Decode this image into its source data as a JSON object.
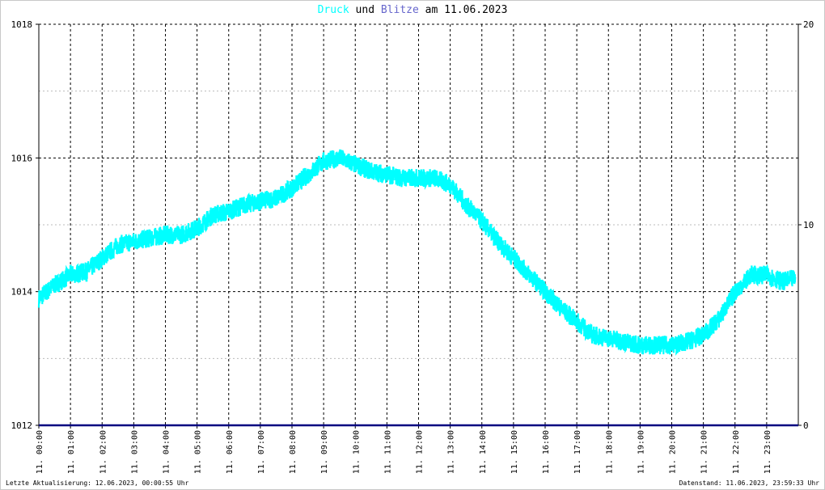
{
  "title": {
    "part1": "Druck",
    "part2": " und ",
    "part3": "Blitze",
    "part4": " am 11.06.2023",
    "color1": "#00ffff",
    "color3": "#6666cc"
  },
  "footer": {
    "left": "Letzte Aktualisierung: 12.06.2023, 00:00:55 Uhr",
    "right": "Datenstand: 11.06.2023, 23:59:33 Uhr"
  },
  "chart_data": {
    "type": "line",
    "title": "Druck und Blitze am 11.06.2023",
    "x_tick_labels": [
      "11. 00:00",
      "11. 01:00",
      "11. 02:00",
      "11. 03:00",
      "11. 04:00",
      "11. 05:00",
      "11. 06:00",
      "11. 07:00",
      "11. 08:00",
      "11. 09:00",
      "11. 10:00",
      "11. 11:00",
      "11. 12:00",
      "11. 13:00",
      "11. 14:00",
      "11. 15:00",
      "11. 16:00",
      "11. 17:00",
      "11. 18:00",
      "11. 19:00",
      "11. 20:00",
      "11. 21:00",
      "11. 22:00",
      "11. 23:00"
    ],
    "xlim_hours": [
      0,
      24
    ],
    "y_left": {
      "ylim": [
        1012,
        1018
      ],
      "ticks": [
        "1012",
        "1014",
        "1016",
        "1018"
      ]
    },
    "y_right": {
      "ylim": [
        0,
        20
      ],
      "ticks": [
        "0",
        "10",
        "20"
      ]
    },
    "grid": true,
    "series": [
      {
        "name": "Druck",
        "axis": "left",
        "color": "#00ffff",
        "x_hours": [
          0,
          0.5,
          1,
          1.5,
          2,
          2.5,
          3,
          3.5,
          4,
          4.5,
          5,
          5.5,
          6,
          6.5,
          7,
          7.5,
          8,
          8.5,
          9,
          9.5,
          10,
          10.5,
          11,
          11.5,
          12,
          12.5,
          13,
          13.5,
          14,
          14.5,
          15,
          15.5,
          16,
          16.5,
          17,
          17.5,
          18,
          18.5,
          19,
          19.5,
          20,
          20.5,
          21,
          21.5,
          22,
          22.5,
          23,
          23.5,
          23.9
        ],
        "values": [
          1013.9,
          1014.1,
          1014.25,
          1014.3,
          1014.5,
          1014.7,
          1014.75,
          1014.8,
          1014.85,
          1014.85,
          1014.95,
          1015.15,
          1015.2,
          1015.3,
          1015.35,
          1015.4,
          1015.55,
          1015.75,
          1015.95,
          1016.0,
          1015.9,
          1015.8,
          1015.75,
          1015.7,
          1015.7,
          1015.7,
          1015.6,
          1015.3,
          1015.05,
          1014.75,
          1014.5,
          1014.25,
          1014.0,
          1013.75,
          1013.55,
          1013.35,
          1013.3,
          1013.25,
          1013.2,
          1013.2,
          1013.2,
          1013.25,
          1013.35,
          1013.6,
          1014.0,
          1014.25,
          1014.25,
          1014.15,
          1014.2
        ]
      },
      {
        "name": "Blitze",
        "axis": "right",
        "color": "#000080",
        "x_hours": [
          0,
          24
        ],
        "values": [
          0,
          0
        ]
      }
    ]
  }
}
